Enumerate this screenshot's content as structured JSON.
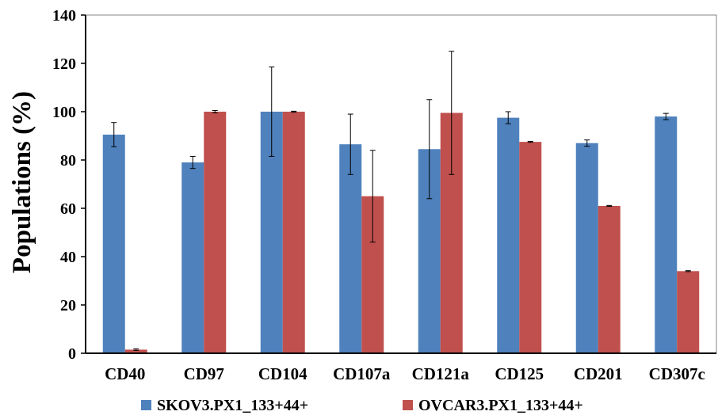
{
  "chart_data": {
    "type": "bar",
    "title": "",
    "xlabel": "",
    "ylabel": "Populations (%)",
    "ylim": [
      0,
      140
    ],
    "yticks": [
      "0",
      "20",
      "40",
      "60",
      "80",
      "100",
      "120",
      "140"
    ],
    "categories": [
      "CD40",
      "CD97",
      "CD104",
      "CD107a",
      "CD121a",
      "CD125",
      "CD201",
      "CD307c"
    ],
    "series": [
      {
        "name": "SKOV3.PX1_133+44+",
        "color": "#4f81bd",
        "values": [
          90.5,
          79,
          100,
          86.5,
          84.5,
          97.5,
          87,
          98
        ],
        "errors": [
          5,
          2.5,
          18.5,
          12.5,
          20.5,
          2.5,
          1.3,
          1.3
        ]
      },
      {
        "name": "OVCAR3.PX1_133+44+",
        "color": "#c0504d",
        "values": [
          1.5,
          100,
          100,
          65,
          99.5,
          87.5,
          61,
          34
        ],
        "errors": [
          0.3,
          0.5,
          0.2,
          19,
          25.5,
          0.2,
          0.2,
          0.2
        ]
      }
    ],
    "grid": false,
    "legend_position": "bottom",
    "error_bars": true
  }
}
